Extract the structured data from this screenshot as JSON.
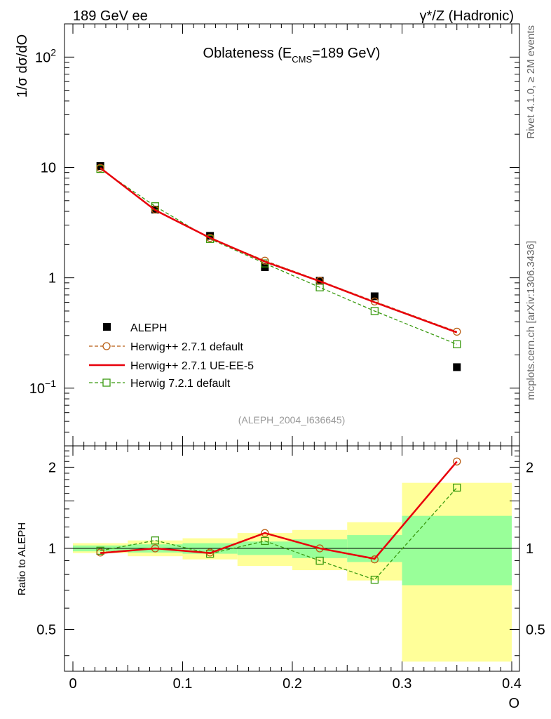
{
  "header": {
    "left_label": "189 GeV ee",
    "right_label": "γ*/Z (Hadronic)"
  },
  "side_labels": {
    "rivet": "Rivet 4.1.0, ≥ 2M events",
    "mcplots": "mcplots.cern.ch [arXiv:1306.3436]"
  },
  "chart_data": [
    {
      "type": "line",
      "scale": "log",
      "title": "Oblateness (E",
      "title_sub": "CMS",
      "title_tail": "=189 GeV)",
      "ylabel": "1/σ  dσ/dO",
      "xlabel": "O",
      "xlim": [
        0,
        0.4
      ],
      "ylim": [
        0.03,
        200
      ],
      "y_ticks": [
        {
          "value": 100,
          "base": "10",
          "exp": "2"
        },
        {
          "value": 10,
          "label": "10"
        },
        {
          "value": 1,
          "label": "1"
        },
        {
          "value": 0.1,
          "base": "10",
          "exp": "−1"
        }
      ],
      "annotation": "(ALEPH_2004_I636645)",
      "series": [
        {
          "name": "ALEPH",
          "style": "data",
          "color": "#000000",
          "x": [
            0.025,
            0.075,
            0.125,
            0.175,
            0.225,
            0.275,
            0.35
          ],
          "values": [
            10.3,
            4.15,
            2.4,
            1.25,
            0.94,
            0.68,
            0.155
          ]
        },
        {
          "name": "Herwig++ 2.7.1 default",
          "style": "dashed-circle",
          "color": "#b85c10",
          "x": [
            0.025,
            0.075,
            0.125,
            0.175,
            0.225,
            0.275,
            0.35
          ],
          "values": [
            9.9,
            4.15,
            2.3,
            1.43,
            0.94,
            0.61,
            0.325
          ]
        },
        {
          "name": "Herwig++ 2.7.1 UE-EE-5",
          "style": "solid",
          "color": "#e8000b",
          "x": [
            0.025,
            0.075,
            0.125,
            0.175,
            0.225,
            0.275,
            0.35
          ],
          "values": [
            9.9,
            4.1,
            2.3,
            1.4,
            0.93,
            0.6,
            0.32
          ]
        },
        {
          "name": "Herwig 7.2.1 default",
          "style": "dashed-square",
          "color": "#3a9a10",
          "x": [
            0.025,
            0.075,
            0.125,
            0.175,
            0.225,
            0.275,
            0.35
          ],
          "values": [
            9.7,
            4.45,
            2.25,
            1.35,
            0.82,
            0.5,
            0.25
          ]
        }
      ]
    },
    {
      "type": "line",
      "scale": "log",
      "ylabel": "Ratio to ALEPH",
      "xlabel": "O",
      "xlim": [
        0,
        0.4
      ],
      "ylim": [
        0.35,
        2.4
      ],
      "y_ticks": [
        {
          "value": 2,
          "label": "2"
        },
        {
          "value": 1,
          "label": "1"
        },
        {
          "value": 0.5,
          "label": "0.5"
        }
      ],
      "x_ticks": [
        {
          "value": 0,
          "label": "0"
        },
        {
          "value": 0.1,
          "label": "0.1"
        },
        {
          "value": 0.2,
          "label": "0.2"
        },
        {
          "value": 0.3,
          "label": "0.3"
        },
        {
          "value": 0.4,
          "label": "0.4"
        }
      ],
      "uncertainty_bands": [
        {
          "x0": 0.0,
          "x1": 0.05,
          "inner": [
            0.975,
            1.025
          ],
          "outer": [
            0.96,
            1.045
          ]
        },
        {
          "x0": 0.05,
          "x1": 0.1,
          "inner": [
            0.965,
            1.035
          ],
          "outer": [
            0.935,
            1.07
          ]
        },
        {
          "x0": 0.1,
          "x1": 0.15,
          "inner": [
            0.955,
            1.045
          ],
          "outer": [
            0.91,
            1.09
          ]
        },
        {
          "x0": 0.15,
          "x1": 0.2,
          "inner": [
            0.945,
            1.06
          ],
          "outer": [
            0.86,
            1.14
          ]
        },
        {
          "x0": 0.2,
          "x1": 0.25,
          "inner": [
            0.92,
            1.08
          ],
          "outer": [
            0.83,
            1.17
          ]
        },
        {
          "x0": 0.25,
          "x1": 0.3,
          "inner": [
            0.89,
            1.12
          ],
          "outer": [
            0.76,
            1.25
          ]
        },
        {
          "x0": 0.3,
          "x1": 0.4,
          "inner": [
            0.73,
            1.32
          ],
          "outer": [
            0.38,
            1.75
          ]
        }
      ],
      "series": [
        {
          "name": "Herwig++ 2.7.1 default",
          "style": "dashed-circle",
          "color": "#b85c10",
          "x": [
            0.025,
            0.075,
            0.125,
            0.175,
            0.225,
            0.275,
            0.35
          ],
          "values": [
            0.965,
            1.0,
            0.965,
            1.14,
            1.0,
            0.91,
            2.1
          ]
        },
        {
          "name": "Herwig++ 2.7.1 UE-EE-5",
          "style": "solid",
          "color": "#e8000b",
          "x": [
            0.025,
            0.075,
            0.125,
            0.175,
            0.225,
            0.275,
            0.35
          ],
          "values": [
            0.96,
            1.0,
            0.96,
            1.14,
            1.0,
            0.915,
            2.1
          ]
        },
        {
          "name": "Herwig 7.2.1 default",
          "style": "dashed-square",
          "color": "#3a9a10",
          "x": [
            0.025,
            0.075,
            0.125,
            0.175,
            0.225,
            0.275,
            0.35
          ],
          "values": [
            0.98,
            1.07,
            0.955,
            1.065,
            0.9,
            0.765,
            1.68
          ]
        }
      ]
    }
  ]
}
